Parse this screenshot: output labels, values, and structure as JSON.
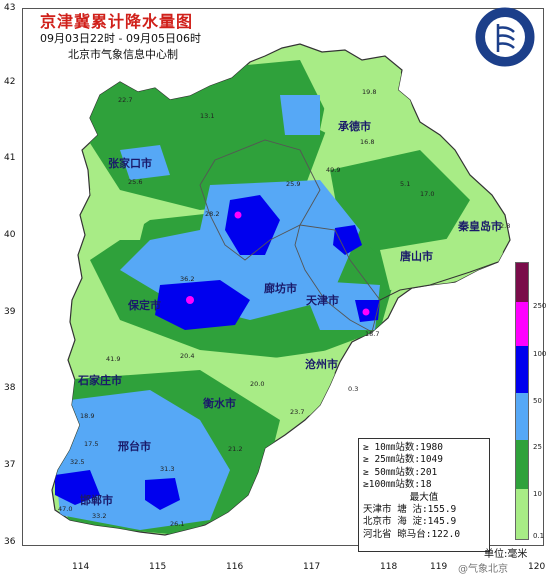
{
  "header": {
    "title": "京津冀累计降水量图",
    "subtitle": "09月03日22时 - 09月05日06时",
    "producer": "北京市气象信息中心制"
  },
  "axes": {
    "lat_labels": [
      "43",
      "42",
      "41",
      "40",
      "39",
      "38",
      "37",
      "36"
    ],
    "lon_labels": [
      "114",
      "115",
      "116",
      "117",
      "118",
      "119",
      "120"
    ]
  },
  "legend": {
    "ticks": [
      "250",
      "100",
      "50",
      "25",
      "10",
      "0.1"
    ],
    "colors": [
      "#7a0c4a",
      "#ff00ff",
      "#0000ee",
      "#56a8f6",
      "#2fa13b",
      "#a8ec86"
    ],
    "unit": "单位:毫米"
  },
  "stats": {
    "line1": "≥ 10㎜站数:1980",
    "line2": "≥ 25㎜站数:1049",
    "line3": "≥ 50㎜站数:201",
    "line4": "≥100㎜站数:18",
    "max_heading": "最大值",
    "max1": "天津市 塘  沽:155.9",
    "max2": "北京市 海  淀:145.9",
    "max3": "河北省 晾马台:122.0"
  },
  "cities": {
    "chengde": "承德市",
    "zhangjiakou": "张家口市",
    "qinhuangdao": "秦皇岛市",
    "tangshan": "唐山市",
    "langfang": "廊坊市",
    "tianjin": "天津市",
    "baoding": "保定市",
    "cangzhou": "沧州市",
    "shijiazhuang": "石家庄市",
    "hengshui": "衡水市",
    "xingtai": "邢台市",
    "handan": "邯郸市"
  },
  "station_values": {
    "v1": "19.8",
    "v2": "22.7",
    "v3": "13.1",
    "v4": "16.8",
    "v5": "25.6",
    "v6": "5.1",
    "v7": "25.9",
    "v8": "49.9",
    "v9": "17.0",
    "v10": "28.2",
    "v11": "36.2",
    "v12": "2.8",
    "v13": "18.7",
    "v14": "20.4",
    "v15": "41.9",
    "v16": "20.0",
    "v17": "23.7",
    "v18": "18.9",
    "v19": "0.3",
    "v20": "17.5",
    "v21": "21.2",
    "v22": "32.5",
    "v23": "31.3",
    "v24": "47.0",
    "v25": "33.2",
    "v26": "26.1"
  },
  "watermark": "@气象北京"
}
